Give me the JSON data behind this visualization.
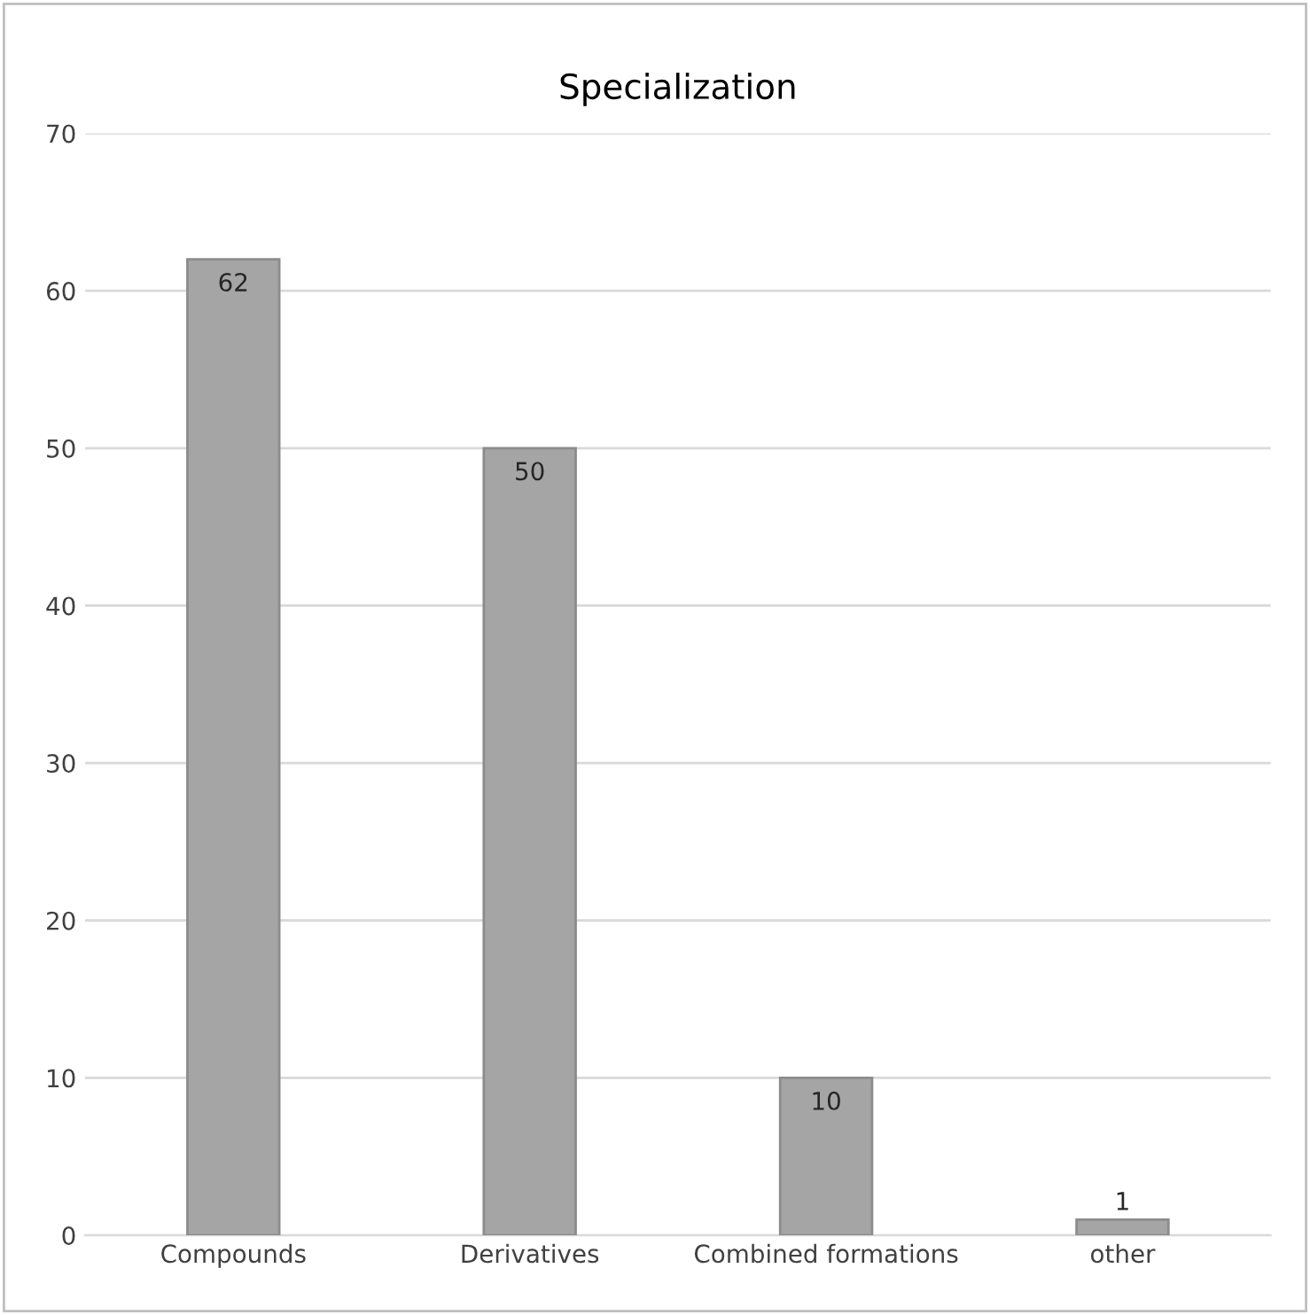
{
  "chart_data": {
    "type": "bar",
    "title": "Specialization",
    "categories": [
      "Compounds",
      "Derivatives",
      "Combined formations",
      "other"
    ],
    "values": [
      62,
      50,
      10,
      1
    ],
    "color": "#a5a5a5",
    "ylim": [
      0,
      70
    ],
    "yticks": [
      0,
      10,
      20,
      30,
      40,
      50,
      60,
      70
    ],
    "grid": "y",
    "data_labels": true
  }
}
